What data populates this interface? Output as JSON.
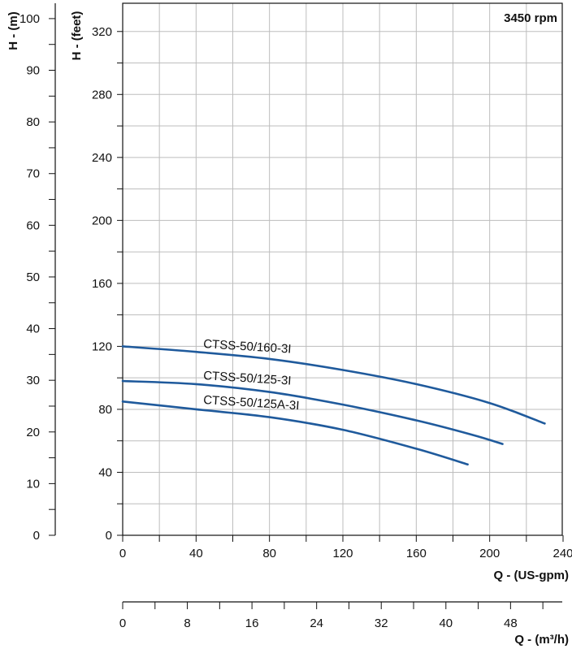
{
  "chart_data": {
    "type": "line",
    "speed_label": "3450 rpm",
    "x_primary": {
      "title": "Q - (US-gpm)",
      "range": [
        0,
        240
      ],
      "ticks": [
        "0",
        "40",
        "80",
        "120",
        "160",
        "200",
        "240"
      ],
      "tick_values": [
        0,
        40,
        80,
        120,
        160,
        200,
        240
      ]
    },
    "x_secondary": {
      "title": "Q - (m³/h)",
      "range": [
        0,
        54.5
      ],
      "ticks": [
        "0",
        "8",
        "16",
        "24",
        "32",
        "40",
        "48"
      ],
      "tick_values": [
        0,
        8,
        16,
        24,
        32,
        40,
        48
      ]
    },
    "y_primary": {
      "title": "H - (feet)",
      "range": [
        0,
        340
      ],
      "ticks": [
        "0",
        "40",
        "80",
        "120",
        "160",
        "200",
        "240",
        "280",
        "320"
      ],
      "tick_values": [
        0,
        40,
        80,
        120,
        160,
        200,
        240,
        280,
        320
      ]
    },
    "y_secondary": {
      "title": "H - (m)",
      "range": [
        0,
        103.6
      ],
      "ticks": [
        "0",
        "10",
        "20",
        "30",
        "40",
        "50",
        "60",
        "70",
        "80",
        "90",
        "100"
      ],
      "tick_values": [
        0,
        10,
        20,
        30,
        40,
        50,
        60,
        70,
        80,
        90,
        100
      ]
    },
    "grid": true,
    "series_color": "#1f5a9c",
    "series": [
      {
        "name": "CTSS-50/160-3I",
        "x": [
          0,
          40,
          80,
          120,
          160,
          200,
          230
        ],
        "y": [
          120,
          116.5,
          112,
          105,
          96,
          84,
          71
        ]
      },
      {
        "name": "CTSS-50/125-3I",
        "x": [
          0,
          40,
          80,
          120,
          160,
          190,
          207
        ],
        "y": [
          98,
          96,
          91,
          83,
          73,
          64,
          58
        ]
      },
      {
        "name": "CTSS-50/125A-3I",
        "x": [
          0,
          40,
          80,
          120,
          160,
          188
        ],
        "y": [
          85,
          80,
          75,
          67,
          55,
          45
        ]
      }
    ]
  }
}
